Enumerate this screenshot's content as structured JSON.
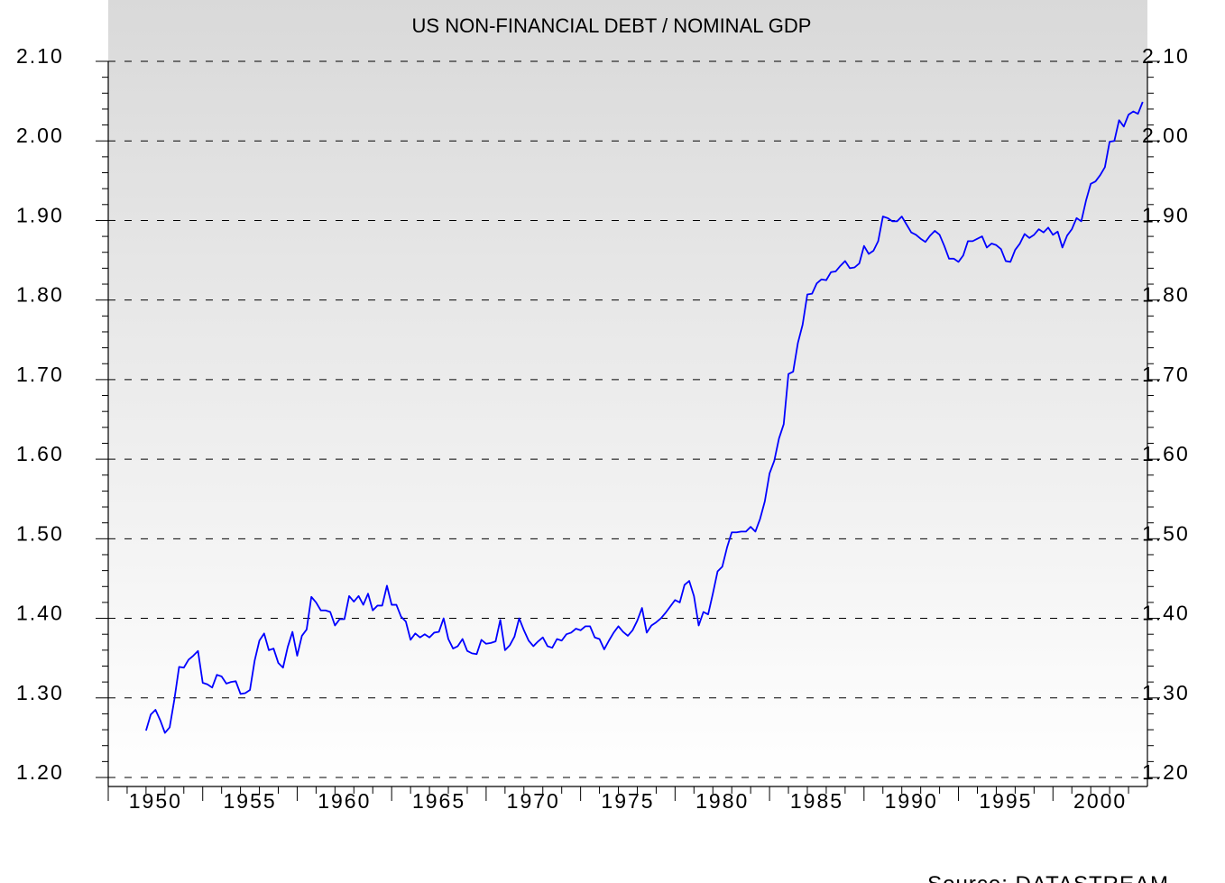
{
  "chart_data": {
    "type": "line",
    "title": "US NON-FINANCIAL DEBT / NOMINAL GDP",
    "source": "Source: DATASTREAM",
    "xlim": [
      1950,
      2005
    ],
    "xticks": [
      1950,
      1955,
      1960,
      1965,
      1970,
      1975,
      1980,
      1985,
      1990,
      1995,
      2000
    ],
    "ylim": [
      1.2,
      2.1
    ],
    "yticks": [
      {
        "value": 1.2,
        "label": "1.20"
      },
      {
        "value": 1.3,
        "label": "1.30"
      },
      {
        "value": 1.4,
        "label": "1.40"
      },
      {
        "value": 1.5,
        "label": "1.50"
      },
      {
        "value": 1.6,
        "label": "1.60"
      },
      {
        "value": 1.7,
        "label": "1.70"
      },
      {
        "value": 1.8,
        "label": "1.80"
      },
      {
        "value": 1.9,
        "label": "1.90"
      },
      {
        "value": 2.0,
        "label": "2.00"
      },
      {
        "value": 2.1,
        "label": "2.10"
      }
    ],
    "grid": true,
    "x": [
      1952,
      1952.25,
      1952.5,
      1952.75,
      1953,
      1953.25,
      1953.5,
      1953.75,
      1954,
      1954.25,
      1954.5,
      1954.75,
      1955,
      1955.25,
      1955.5,
      1955.75,
      1956,
      1956.25,
      1956.5,
      1956.75,
      1957,
      1957.25,
      1957.5,
      1957.75,
      1958,
      1958.25,
      1958.5,
      1958.75,
      1959,
      1959.25,
      1959.5,
      1959.75,
      1960,
      1960.25,
      1960.5,
      1960.75,
      1961,
      1961.25,
      1961.5,
      1961.75,
      1962,
      1962.25,
      1962.5,
      1962.75,
      1963,
      1963.25,
      1963.5,
      1963.75,
      1964,
      1964.25,
      1964.5,
      1964.75,
      1965,
      1965.25,
      1965.5,
      1965.75,
      1966,
      1966.25,
      1966.5,
      1966.75,
      1967,
      1967.25,
      1967.5,
      1967.75,
      1968,
      1968.25,
      1968.5,
      1968.75,
      1969,
      1969.25,
      1969.5,
      1969.75,
      1970,
      1970.25,
      1970.5,
      1970.75,
      1971,
      1971.25,
      1971.5,
      1971.75,
      1972,
      1972.25,
      1972.5,
      1972.75,
      1973,
      1973.25,
      1973.5,
      1973.75,
      1974,
      1974.25,
      1974.5,
      1974.75,
      1975,
      1975.25,
      1975.5,
      1975.75,
      1976,
      1976.25,
      1976.5,
      1976.75,
      1977,
      1977.25,
      1977.5,
      1977.75,
      1978,
      1978.25,
      1978.5,
      1978.75,
      1979,
      1979.25,
      1979.5,
      1979.75,
      1980,
      1980.25,
      1980.5,
      1980.75,
      1981,
      1981.25,
      1981.5,
      1981.75,
      1982,
      1982.25,
      1982.5,
      1982.75,
      1983,
      1983.25,
      1983.5,
      1983.75,
      1984,
      1984.25,
      1984.5,
      1984.75,
      1985,
      1985.25,
      1985.5,
      1985.75,
      1986,
      1986.25,
      1986.5,
      1986.75,
      1987,
      1987.25,
      1987.5,
      1987.75,
      1988,
      1988.25,
      1988.5,
      1988.75,
      1989,
      1989.25,
      1989.5,
      1989.75,
      1990,
      1990.25,
      1990.5,
      1990.75,
      1991,
      1991.25,
      1991.5,
      1991.75,
      1992,
      1992.25,
      1992.5,
      1992.75,
      1993,
      1993.25,
      1993.5,
      1993.75,
      1994,
      1994.25,
      1994.5,
      1994.75,
      1995,
      1995.25,
      1995.5,
      1995.75,
      1996,
      1996.25,
      1996.5,
      1996.75,
      1997,
      1997.25,
      1997.5,
      1997.75,
      1998,
      1998.25,
      1998.5,
      1998.75,
      1999,
      1999.25,
      1999.5,
      1999.75,
      2000,
      2000.25,
      2000.5,
      2000.75,
      2001,
      2001.25,
      2001.5,
      2001.75,
      2002,
      2002.25,
      2002.5,
      2002.75,
      2003,
      2003.25,
      2003.5,
      2003.75,
      2004,
      2004.25,
      2004.5,
      2004.75
    ],
    "series": [
      {
        "color": "#0000ff",
        "values": [
          1.259,
          1.279,
          1.285,
          1.272,
          1.256,
          1.263,
          1.298,
          1.339,
          1.338,
          1.348,
          1.353,
          1.359,
          1.319,
          1.317,
          1.313,
          1.329,
          1.327,
          1.318,
          1.32,
          1.321,
          1.305,
          1.306,
          1.31,
          1.347,
          1.372,
          1.381,
          1.36,
          1.362,
          1.344,
          1.338,
          1.364,
          1.383,
          1.353,
          1.378,
          1.386,
          1.427,
          1.42,
          1.41,
          1.41,
          1.408,
          1.391,
          1.399,
          1.399,
          1.428,
          1.421,
          1.428,
          1.417,
          1.431,
          1.41,
          1.416,
          1.416,
          1.441,
          1.417,
          1.417,
          1.402,
          1.396,
          1.373,
          1.381,
          1.376,
          1.38,
          1.376,
          1.382,
          1.383,
          1.4,
          1.374,
          1.362,
          1.365,
          1.374,
          1.359,
          1.356,
          1.355,
          1.373,
          1.368,
          1.369,
          1.371,
          1.398,
          1.36,
          1.366,
          1.377,
          1.4,
          1.385,
          1.372,
          1.365,
          1.371,
          1.376,
          1.365,
          1.363,
          1.374,
          1.372,
          1.38,
          1.382,
          1.387,
          1.385,
          1.39,
          1.39,
          1.376,
          1.374,
          1.361,
          1.372,
          1.382,
          1.39,
          1.383,
          1.378,
          1.385,
          1.397,
          1.413,
          1.382,
          1.391,
          1.395,
          1.4,
          1.407,
          1.415,
          1.423,
          1.42,
          1.442,
          1.447,
          1.428,
          1.391,
          1.408,
          1.405,
          1.431,
          1.459,
          1.465,
          1.489,
          1.508,
          1.508,
          1.509,
          1.509,
          1.515,
          1.509,
          1.525,
          1.547,
          1.582,
          1.598,
          1.626,
          1.644,
          1.707,
          1.71,
          1.746,
          1.769,
          1.807,
          1.808,
          1.821,
          1.826,
          1.825,
          1.835,
          1.836,
          1.843,
          1.849,
          1.84,
          1.841,
          1.846,
          1.868,
          1.858,
          1.862,
          1.874,
          1.905,
          1.903,
          1.899,
          1.899,
          1.905,
          1.895,
          1.885,
          1.882,
          1.877,
          1.873,
          1.881,
          1.887,
          1.882,
          1.868,
          1.852,
          1.852,
          1.848,
          1.856,
          1.874,
          1.874,
          1.877,
          1.88,
          1.866,
          1.871,
          1.869,
          1.864,
          1.849,
          1.848,
          1.863,
          1.871,
          1.883,
          1.878,
          1.882,
          1.889,
          1.885,
          1.891,
          1.882,
          1.886,
          1.866,
          1.881,
          1.889,
          1.903,
          1.899,
          1.925,
          1.946,
          1.949,
          1.957,
          1.967,
          1.999,
          2.0,
          2.026,
          2.018,
          2.033,
          2.037,
          2.034,
          2.049
        ]
      }
    ]
  }
}
